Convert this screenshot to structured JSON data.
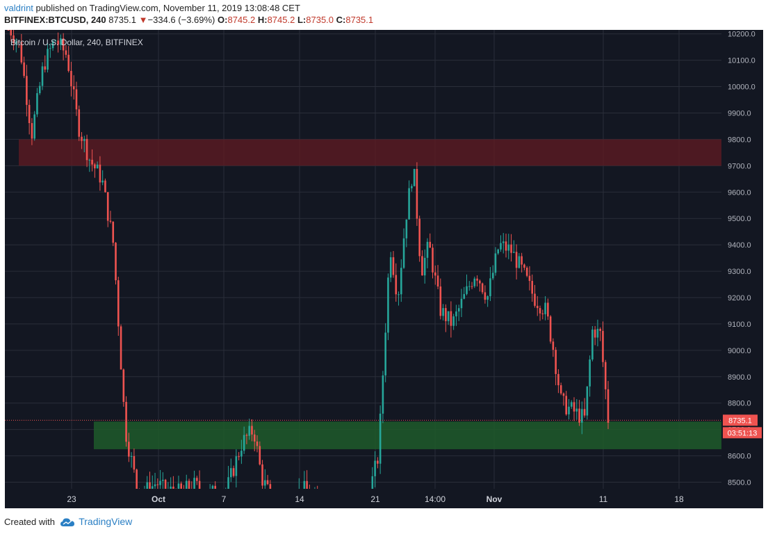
{
  "header": {
    "author": "valdrint",
    "published_text": "published on TradingView.com, November 11, 2019 13:08:48 CET",
    "symbol": "BITFINEX:BTCUSD, 240",
    "last": "8735.1",
    "change": "−334.6 (−3.69%)",
    "o_label": "O:",
    "o_value": "8745.2",
    "h_label": "H:",
    "h_value": "8745.2",
    "l_label": "L:",
    "l_value": "8735.0",
    "c_label": "C:",
    "c_value": "8735.1"
  },
  "footer": {
    "created_text": "Created with",
    "brand": "TradingView"
  },
  "colors": {
    "background": "#131722",
    "grid": "#2a2e39",
    "up": "#26a69a",
    "down": "#ef5350",
    "resistance_zone": "#5c1a23",
    "support_zone": "#1e5a2a",
    "price_tag": "#ef5350"
  },
  "chart_data": {
    "type": "candlestick",
    "title": "Bitcoin / U.S. Dollar, 240, BITFINEX",
    "price_axis": {
      "ylim": [
        8475,
        10215
      ],
      "ticks": [
        8500,
        8600,
        8700,
        8800,
        8900,
        9000,
        9100,
        9200,
        9300,
        9400,
        9500,
        9600,
        9700,
        9800,
        9900,
        10000,
        10100,
        10200
      ],
      "tick_labels": [
        "8500.0",
        "8600.0",
        "8700.0",
        "8800.0",
        "8900.0",
        "9000.0",
        "9100.0",
        "9200.0",
        "9300.0",
        "9400.0",
        "9500.0",
        "9600.0",
        "9700.0",
        "9800.0",
        "9900.0",
        "10000.0",
        "10100.0",
        "10200.0"
      ]
    },
    "time_axis": {
      "tick_labels": [
        {
          "label": "23",
          "bold": false
        },
        {
          "label": "Oct",
          "bold": true
        },
        {
          "label": "7",
          "bold": false
        },
        {
          "label": "14",
          "bold": false
        },
        {
          "label": "21",
          "bold": false
        },
        {
          "label": "14:00",
          "bold": false
        },
        {
          "label": "Nov",
          "bold": true
        },
        {
          "label": "11",
          "bold": false
        },
        {
          "label": "18",
          "bold": false
        }
      ]
    },
    "zones": [
      {
        "name": "resistance",
        "from": 9700,
        "to": 9800
      },
      {
        "name": "support",
        "from": 8625,
        "to": 8730
      }
    ],
    "last_price": {
      "value": 8735.1,
      "label": "8735.1",
      "countdown": "03:51:13"
    },
    "candle_path": [
      [
        0,
        10230
      ],
      [
        3,
        10150
      ],
      [
        6,
        9820
      ],
      [
        9,
        10080
      ],
      [
        12,
        10180
      ],
      [
        15,
        10120
      ],
      [
        18,
        9850
      ],
      [
        21,
        9720
      ],
      [
        24,
        9650
      ],
      [
        27,
        9400
      ],
      [
        30,
        8700
      ],
      [
        33,
        8480
      ],
      [
        36,
        8470
      ],
      [
        38,
        8500
      ],
      [
        40,
        8470
      ],
      [
        44,
        8460
      ],
      [
        48,
        8490
      ],
      [
        50,
        8450
      ],
      [
        56,
        8470
      ],
      [
        60,
        8650
      ],
      [
        63,
        8700
      ],
      [
        65,
        8520
      ],
      [
        68,
        8420
      ],
      [
        72,
        8440
      ],
      [
        76,
        8470
      ],
      [
        80,
        8400
      ],
      [
        84,
        8420
      ],
      [
        88,
        8300
      ],
      [
        92,
        8420
      ],
      [
        95,
        8600
      ],
      [
        98,
        9400
      ],
      [
        100,
        9200
      ],
      [
        102,
        9500
      ],
      [
        104,
        9700
      ],
      [
        106,
        9300
      ],
      [
        108,
        9400
      ],
      [
        111,
        9150
      ],
      [
        114,
        9100
      ],
      [
        117,
        9200
      ],
      [
        120,
        9300
      ],
      [
        123,
        9200
      ],
      [
        126,
        9400
      ],
      [
        129,
        9380
      ],
      [
        132,
        9300
      ],
      [
        135,
        9200
      ],
      [
        138,
        9150
      ],
      [
        140,
        9000
      ],
      [
        142,
        8800
      ],
      [
        144,
        8780
      ],
      [
        146,
        8760
      ],
      [
        148,
        8740
      ],
      [
        150,
        9080
      ],
      [
        152,
        9060
      ],
      [
        154,
        8740
      ]
    ]
  }
}
